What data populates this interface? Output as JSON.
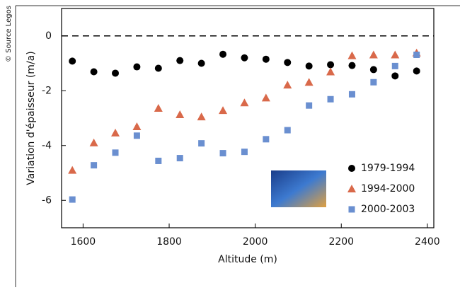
{
  "chart_data": {
    "type": "scatter",
    "source": "© Source Legos",
    "x_label": "Altitude (m)",
    "y_label": "Variation d'épaisseur (m/a)",
    "xlim": [
      1550,
      2415
    ],
    "ylim": [
      -7,
      1
    ],
    "xticks": [
      1600,
      1800,
      2000,
      2200,
      2400
    ],
    "yticks": [
      0,
      -2,
      -4,
      -6
    ],
    "zero_line": true,
    "legend": "lower right",
    "x": [
      1575,
      1625,
      1675,
      1725,
      1775,
      1825,
      1875,
      1925,
      1975,
      2025,
      2075,
      2125,
      2175,
      2225,
      2275,
      2325,
      2375
    ],
    "series": [
      {
        "name": "1979-1994",
        "color": "#000000",
        "marker": "circle",
        "values": [
          -0.92,
          -1.31,
          -1.36,
          -1.13,
          -1.18,
          -0.9,
          -1.0,
          -0.67,
          -0.8,
          -0.85,
          -0.97,
          -1.1,
          -1.05,
          -1.08,
          -1.23,
          -1.46,
          -1.28
        ]
      },
      {
        "name": "1994-2000",
        "color": "#d9694a",
        "marker": "triangle",
        "values": [
          -4.9,
          -3.9,
          -3.54,
          -3.31,
          -2.64,
          -2.87,
          -2.95,
          -2.72,
          -2.44,
          -2.26,
          -1.79,
          -1.69,
          -1.31,
          -0.72,
          -0.69,
          -0.69,
          -0.62
        ]
      },
      {
        "name": "2000-2003",
        "color": "#6a8fd0",
        "marker": "square",
        "values": [
          -5.97,
          -4.72,
          -4.26,
          -3.64,
          -4.56,
          -4.46,
          -3.92,
          -4.28,
          -4.23,
          -3.77,
          -3.44,
          -2.54,
          -2.31,
          -2.13,
          -1.69,
          -1.1,
          -0.69
        ]
      }
    ]
  }
}
